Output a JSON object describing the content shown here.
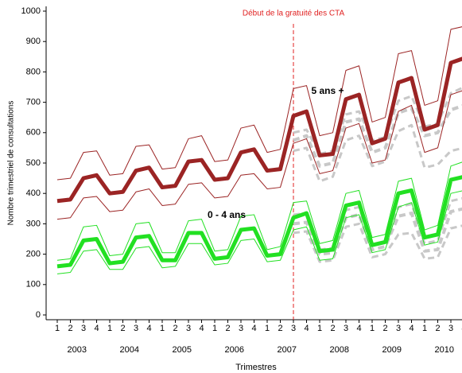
{
  "chart_data": {
    "type": "line",
    "annotation": "Début de la gratuité des CTA",
    "vline_x": 18,
    "vline_color": "#e02020",
    "xlabel": "Trimestres",
    "ylabel": "Nombre trimestriel de consultations",
    "categories": [
      "1",
      "2",
      "3",
      "4",
      "1",
      "2",
      "3",
      "4",
      "1",
      "2",
      "3",
      "4",
      "1",
      "2",
      "3",
      "4",
      "1",
      "2",
      "3",
      "4",
      "1",
      "2",
      "3",
      "4",
      "1",
      "2",
      "3",
      "4",
      "1",
      "2",
      "3",
      "4"
    ],
    "years": [
      "2003",
      "2004",
      "2005",
      "2006",
      "2007",
      "2008",
      "2009",
      "2010"
    ],
    "ylim": [
      0,
      1000
    ],
    "yticks": [
      0,
      100,
      200,
      300,
      400,
      500,
      600,
      700,
      800,
      900,
      1000
    ],
    "series": [
      {
        "name": "5 ans +",
        "color": "#9b2424",
        "linestyle": "solid",
        "values": [
          375,
          380,
          450,
          460,
          400,
          405,
          475,
          485,
          420,
          425,
          505,
          510,
          445,
          450,
          535,
          545,
          475,
          480,
          655,
          670,
          525,
          530,
          710,
          725,
          565,
          580,
          765,
          780,
          610,
          625,
          830,
          845
        ]
      },
      {
        "color": "#9b2424",
        "linestyle": "solid",
        "values": [
          445,
          450,
          535,
          540,
          460,
          465,
          555,
          560,
          480,
          485,
          580,
          590,
          505,
          510,
          615,
          625,
          535,
          545,
          745,
          755,
          590,
          600,
          805,
          820,
          635,
          650,
          860,
          870,
          690,
          705,
          940,
          950
        ]
      },
      {
        "color": "#9b2424",
        "linestyle": "solid",
        "values": [
          315,
          320,
          385,
          390,
          340,
          345,
          405,
          415,
          360,
          365,
          430,
          435,
          385,
          390,
          460,
          465,
          415,
          420,
          565,
          580,
          465,
          475,
          615,
          630,
          500,
          510,
          670,
          690,
          535,
          550,
          725,
          740
        ]
      },
      {
        "name": "0 - 4 ans",
        "color": "#22e022",
        "linestyle": "solid",
        "values": [
          160,
          165,
          245,
          250,
          170,
          175,
          255,
          260,
          180,
          180,
          270,
          270,
          185,
          190,
          280,
          285,
          195,
          200,
          320,
          335,
          210,
          215,
          360,
          370,
          230,
          240,
          400,
          410,
          255,
          265,
          445,
          455
        ]
      },
      {
        "color": "#22e022",
        "linestyle": "solid",
        "values": [
          180,
          185,
          290,
          295,
          195,
          200,
          300,
          305,
          205,
          205,
          310,
          315,
          210,
          215,
          325,
          330,
          215,
          225,
          370,
          375,
          235,
          245,
          400,
          410,
          255,
          265,
          440,
          450,
          280,
          295,
          490,
          505
        ]
      },
      {
        "color": "#22e022",
        "linestyle": "solid",
        "values": [
          135,
          140,
          210,
          215,
          150,
          150,
          220,
          225,
          155,
          160,
          235,
          235,
          165,
          170,
          245,
          250,
          175,
          180,
          280,
          290,
          180,
          185,
          320,
          330,
          205,
          215,
          355,
          370,
          230,
          240,
          400,
          410
        ]
      },
      {
        "color": "#c8c8c8",
        "linestyle": "dashed",
        "values": [
          null,
          null,
          null,
          null,
          null,
          null,
          null,
          null,
          null,
          null,
          null,
          null,
          null,
          null,
          null,
          null,
          null,
          null,
          575,
          590,
          490,
          500,
          635,
          645,
          535,
          550,
          665,
          680,
          590,
          600,
          675,
          690
        ]
      },
      {
        "color": "#c8c8c8",
        "linestyle": "dashed",
        "values": [
          null,
          null,
          null,
          null,
          null,
          null,
          null,
          null,
          null,
          null,
          null,
          null,
          null,
          null,
          null,
          null,
          null,
          null,
          600,
          610,
          530,
          540,
          660,
          670,
          575,
          585,
          705,
          720,
          620,
          630,
          730,
          750
        ]
      },
      {
        "color": "#c8c8c8",
        "linestyle": "dashed",
        "values": [
          null,
          null,
          null,
          null,
          null,
          null,
          null,
          null,
          null,
          null,
          null,
          null,
          null,
          null,
          null,
          null,
          null,
          null,
          540,
          550,
          440,
          455,
          575,
          590,
          490,
          505,
          605,
          625,
          485,
          495,
          540,
          550
        ]
      },
      {
        "color": "#c8c8c8",
        "linestyle": "dashed",
        "values": [
          null,
          null,
          null,
          null,
          null,
          null,
          null,
          null,
          null,
          null,
          null,
          null,
          null,
          null,
          null,
          null,
          null,
          null,
          300,
          305,
          200,
          205,
          320,
          330,
          215,
          225,
          325,
          335,
          210,
          215,
          340,
          350
        ]
      },
      {
        "color": "#c8c8c8",
        "linestyle": "dashed",
        "values": [
          null,
          null,
          null,
          null,
          null,
          null,
          null,
          null,
          null,
          null,
          null,
          null,
          null,
          null,
          null,
          null,
          null,
          null,
          330,
          335,
          215,
          220,
          345,
          355,
          230,
          240,
          355,
          365,
          235,
          245,
          375,
          385
        ]
      },
      {
        "color": "#c8c8c8",
        "linestyle": "dashed",
        "values": [
          null,
          null,
          null,
          null,
          null,
          null,
          null,
          null,
          null,
          null,
          null,
          null,
          null,
          null,
          null,
          null,
          null,
          null,
          270,
          275,
          175,
          180,
          290,
          300,
          190,
          200,
          265,
          270,
          185,
          190,
          285,
          295
        ]
      }
    ]
  }
}
